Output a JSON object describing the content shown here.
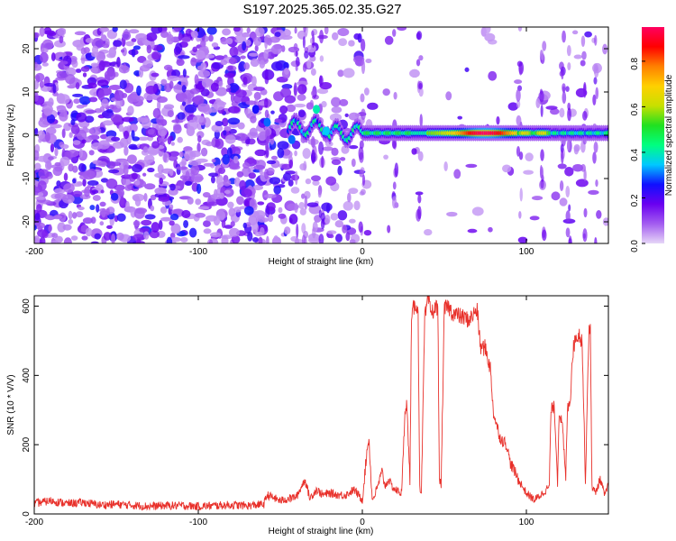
{
  "title": "S197.2025.365.02.35.G27",
  "chart_data": [
    {
      "type": "heatmap",
      "name": "spectrogram",
      "xlabel": "Height of straight line (km)",
      "ylabel": "Frequency (Hz)",
      "xlim": [
        -200,
        150
      ],
      "ylim": [
        -25,
        25
      ],
      "x_ticks": [
        "-200",
        "-100",
        "0",
        "100"
      ],
      "x_tick_values": [
        -200,
        -100,
        0,
        100
      ],
      "y_ticks": [
        "20",
        "10",
        "0",
        "-10",
        "-20"
      ],
      "y_tick_values": [
        20,
        10,
        0,
        -10,
        -20
      ],
      "colorbar": {
        "label": "Normalized spectral amplitude",
        "range": [
          0,
          0.95
        ],
        "ticks": [
          "0.0",
          "0.2",
          "0.4",
          "0.6",
          "0.8"
        ],
        "tick_values": [
          0,
          0.2,
          0.4,
          0.6,
          0.8
        ],
        "colors": [
          "#e6d6f7",
          "#a35cf0",
          "#6a00f0",
          "#1010ff",
          "#00c8ff",
          "#00ff80",
          "#20e020",
          "#c8e000",
          "#ffd000",
          "#ff8000",
          "#ff0000",
          "#ff0060"
        ]
      },
      "signal_band": {
        "frequency_hz": 0.5,
        "x_range": [
          -45,
          150
        ],
        "peak_amplitude": 0.95
      }
    },
    {
      "type": "line",
      "name": "snr",
      "xlabel": "Height of straight line (km)",
      "ylabel": "SNR (10 * V/V)",
      "xlim": [
        -200,
        150
      ],
      "ylim": [
        0,
        630
      ],
      "x_ticks": [
        "-200",
        "-100",
        "0",
        "100"
      ],
      "x_tick_values": [
        -200,
        -100,
        0,
        100
      ],
      "y_ticks": [
        "600",
        "400",
        "200",
        "0"
      ],
      "y_tick_values": [
        600,
        400,
        200,
        0
      ],
      "color": "#e8302a",
      "x": [
        -200,
        -190,
        -180,
        -170,
        -160,
        -150,
        -140,
        -130,
        -120,
        -110,
        -100,
        -90,
        -80,
        -70,
        -60,
        -58,
        -50,
        -40,
        -35,
        -32,
        -28,
        -24,
        -20,
        -15,
        -10,
        -5,
        0,
        3,
        4,
        6,
        8,
        12,
        14,
        16,
        18,
        20,
        24,
        26,
        27,
        29,
        30,
        31,
        32,
        33,
        34,
        35,
        36,
        38,
        39,
        40,
        42,
        44,
        46,
        47,
        48,
        50,
        52,
        55,
        60,
        65,
        70,
        72,
        75,
        78,
        80,
        84,
        88,
        90,
        95,
        100,
        105,
        110,
        114,
        115,
        117,
        118,
        119,
        120,
        122,
        124,
        125,
        127,
        128,
        130,
        132,
        134,
        136,
        138,
        139,
        140,
        142,
        145,
        148,
        150
      ],
      "y": [
        30,
        38,
        30,
        33,
        26,
        28,
        25,
        22,
        24,
        24,
        22,
        24,
        26,
        24,
        28,
        55,
        38,
        50,
        100,
        45,
        70,
        55,
        60,
        55,
        55,
        70,
        40,
        190,
        220,
        40,
        60,
        120,
        80,
        100,
        80,
        70,
        60,
        300,
        320,
        100,
        560,
        590,
        600,
        610,
        570,
        80,
        60,
        560,
        590,
        620,
        580,
        590,
        600,
        100,
        80,
        590,
        600,
        580,
        570,
        560,
        590,
        480,
        480,
        420,
        290,
        220,
        200,
        150,
        100,
        60,
        40,
        60,
        80,
        300,
        310,
        210,
        90,
        300,
        250,
        100,
        300,
        340,
        460,
        510,
        520,
        500,
        90,
        520,
        530,
        80,
        60,
        100,
        50,
        90
      ]
    }
  ]
}
